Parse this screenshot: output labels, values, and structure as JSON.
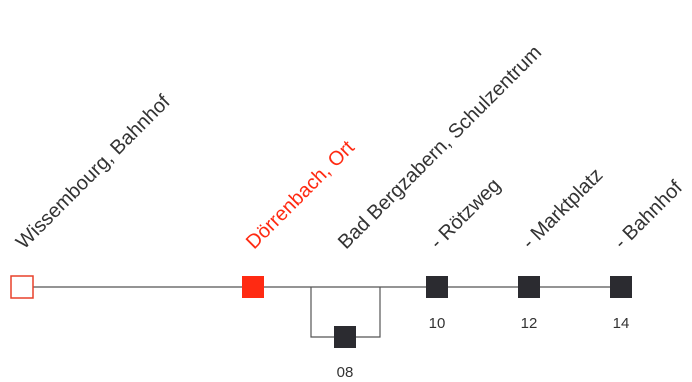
{
  "colors": {
    "line": "#555555",
    "stop": "#2b2b30",
    "current": "#ff2a12",
    "origin_border": "#e8402a",
    "text": "#333333"
  },
  "stops": [
    {
      "id": "origin",
      "label": "Wissembourg, Bahnhof",
      "number": "",
      "style": "origin"
    },
    {
      "id": "current",
      "label": "Dörrenbach, Ort",
      "number": "",
      "style": "current"
    },
    {
      "id": "branch",
      "label": "Bad Bergzabern, Schulzentrum",
      "number": "08",
      "style": "normal"
    },
    {
      "id": "roetzweg",
      "label": "- Rötzweg",
      "number": "10",
      "style": "normal"
    },
    {
      "id": "marktplatz",
      "label": "- Marktplatz",
      "number": "12",
      "style": "normal"
    },
    {
      "id": "bahnhof",
      "label": "- Bahnhof",
      "number": "14",
      "style": "normal"
    }
  ]
}
